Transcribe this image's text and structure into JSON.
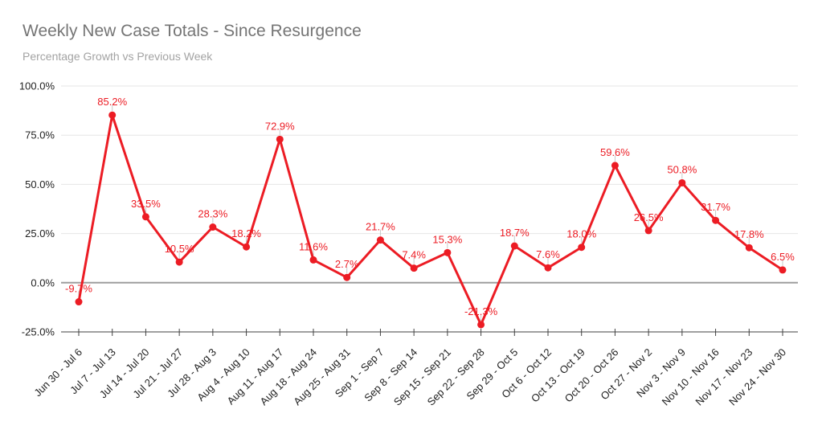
{
  "header": {
    "title": "Weekly New Case Totals - Since Resurgence",
    "subtitle": "Percentage Growth vs Previous Week"
  },
  "chart_data": {
    "type": "line",
    "title": "Weekly New Case Totals - Since Resurgence",
    "subtitle": "Percentage Growth vs Previous Week",
    "categories": [
      "Jun 30 - Jul 6",
      "Jul 7 - Jul 13",
      "Jul 14 - Jul 20",
      "Jul 21 - Jul 27",
      "Jul 28 - Aug 3",
      "Aug 4 - Aug 10",
      "Aug 11 - Aug 17",
      "Aug 18 - Aug 24",
      "Aug 25 - Aug 31",
      "Sep 1 - Sep 7",
      "Sep 8 - Sep 14",
      "Sep 15 - Sep 21",
      "Sep 22 - Sep 28",
      "Sep 29 - Oct 5",
      "Oct 6 - Oct 12",
      "Oct 13 - Oct 19",
      "Oct 20 - Oct 26",
      "Oct 27 - Nov 2",
      "Nov 3 - Nov 9",
      "Nov 10 - Nov 16",
      "Nov 17 - Nov 23",
      "Nov 24 - Nov 30"
    ],
    "series": [
      {
        "name": "Percentage Growth vs Previous Week",
        "values": [
          -9.7,
          85.2,
          33.5,
          10.5,
          28.3,
          18.2,
          72.9,
          11.6,
          2.7,
          21.7,
          7.4,
          15.3,
          -21.3,
          18.7,
          7.6,
          18.0,
          59.6,
          26.5,
          50.8,
          31.7,
          17.8,
          6.5
        ],
        "point_labels": [
          "-9.7%",
          "85.2%",
          "33.5%",
          "10.5%",
          "28.3%",
          "18.2%",
          "72.9%",
          "11.6%",
          "2.7%",
          "21.7%",
          "7.4%",
          "15.3%",
          "-21.3%",
          "18.7%",
          "7.6%",
          "18.0%",
          "59.6%",
          "26.5%",
          "50.8%",
          "31.7%",
          "17.8%",
          "6.5%"
        ]
      }
    ],
    "y_axis": {
      "min": -25,
      "max": 100,
      "tick_values": [
        100,
        75,
        50,
        25,
        0,
        -25
      ],
      "tick_labels": [
        "100.0%",
        "75.0%",
        "50.0%",
        "25.0%",
        "0.0%",
        "-25.0%"
      ],
      "format": "percent"
    },
    "x_axis": {
      "label_rotation_deg": -45
    },
    "legend": "none",
    "grid": "horizontal",
    "colors": {
      "series": "#EC1C24",
      "data_labels": "#EC1C24",
      "label_stem": "#c9c9c9",
      "grid": "#e6e6e6",
      "zero_line": "#9e9e9e",
      "axis_line": "#424242",
      "axis_text": "#212121",
      "title": "#757575",
      "subtitle": "#a3a3a3",
      "background": "#ffffff"
    }
  }
}
